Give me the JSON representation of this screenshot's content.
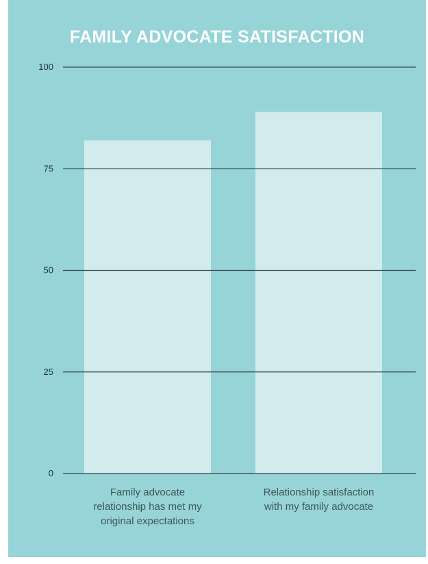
{
  "chart_data": {
    "type": "bar",
    "title": "FAMILY ADVOCATE SATISFACTION",
    "categories": [
      "Family advocate relationship has met my original expectations",
      "Relationship satisfaction with my family advocate"
    ],
    "category_lines": [
      [
        "Family advocate",
        "relationship has met my",
        "original expectations"
      ],
      [
        "Relationship satisfaction",
        "with my family advocate"
      ]
    ],
    "values": [
      82,
      89
    ],
    "yticks": [
      0,
      25,
      50,
      75,
      100
    ],
    "ylim": [
      0,
      100
    ],
    "xlabel": "",
    "ylabel": "",
    "grid": true,
    "colors": {
      "background": "#96d4d7",
      "bar": "#d2ecee",
      "gridline": "#2f4446",
      "title": "#ffffff",
      "text": "#3f5557"
    }
  }
}
